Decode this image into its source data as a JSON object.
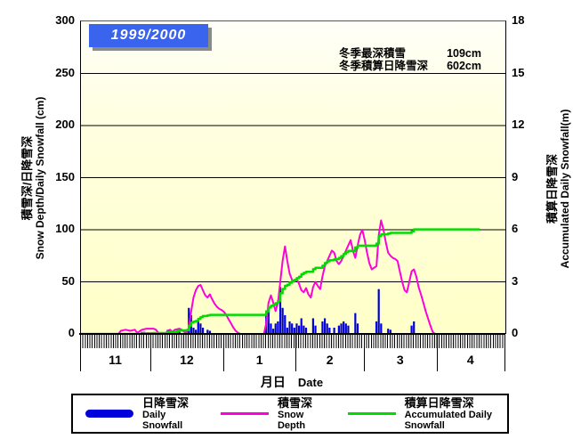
{
  "title": "1999/2000",
  "stats": {
    "max_depth_label": "冬季最深積雪",
    "max_depth_value": "109cm",
    "accum_label": "冬季積算日降雪深",
    "accum_value": "602cm"
  },
  "axes": {
    "left": {
      "title_jp": "積雪深/日降雪深",
      "title_en": "Snow Depth/Daily Snowfall (cm)",
      "ticks": [
        0,
        50,
        100,
        150,
        200,
        250,
        300
      ],
      "max": 300
    },
    "right": {
      "title_jp": "積算日降雪深",
      "title_en": "Accumulated Daily Snowfall(m)",
      "ticks": [
        0,
        3,
        6,
        9,
        12,
        15,
        18
      ],
      "max": 18
    },
    "x": {
      "title_jp": "月日",
      "title_en": "Date",
      "month_labels": [
        "11",
        "12",
        "1",
        "2",
        "3",
        "4"
      ]
    }
  },
  "legend": {
    "items": [
      {
        "jp": "日降雪深",
        "en": "Daily Snowfall",
        "color": "#0000dd",
        "swatch": "bar"
      },
      {
        "jp": "積雪深",
        "en": "Snow Depth",
        "color": "#ff00dc",
        "swatch": "line"
      },
      {
        "jp": "積算日降雪深",
        "en": "Accumulated Daily Snowfall",
        "color": "#00dc00",
        "swatch": "line"
      }
    ]
  },
  "colors": {
    "bars": "#0000dd",
    "snow_depth": "#ff00dc",
    "accumulated": "#00dc00",
    "title_box": "#3a64ee",
    "plot_bg_top": "#fffff8",
    "plot_bg_bottom": "#ffffc8"
  },
  "chart_data": {
    "type": "combo",
    "season": "1999/2000",
    "x_unit": "days from Nov 1",
    "x_total_days": 181,
    "data_end_day": 170,
    "month_boundaries_days": [
      0,
      30,
      61,
      92,
      121,
      152,
      181
    ],
    "left_axis": {
      "min": 0,
      "max": 300,
      "step": 50,
      "unit": "cm"
    },
    "right_axis": {
      "min": 0,
      "max": 18,
      "step": 3,
      "unit": "m"
    },
    "gridlines_cm": [
      50,
      100,
      150,
      200,
      250
    ],
    "annotations": {
      "winter_max_snow_depth_cm": 109,
      "winter_accumulated_daily_snowfall_cm": 602
    },
    "series": [
      {
        "name_jp": "日降雪深",
        "name_en": "Daily Snowfall",
        "type": "bar",
        "unit": "cm",
        "axis": "left",
        "color": "#0000dd",
        "points": [
          [
            26,
            2
          ],
          [
            27,
            2
          ],
          [
            31,
            1
          ],
          [
            37,
            4
          ],
          [
            38,
            3
          ],
          [
            41,
            5
          ],
          [
            42,
            3
          ],
          [
            45,
            2
          ],
          [
            46,
            25
          ],
          [
            47,
            18
          ],
          [
            48,
            6
          ],
          [
            49,
            4
          ],
          [
            50,
            12
          ],
          [
            51,
            10
          ],
          [
            52,
            6
          ],
          [
            54,
            4
          ],
          [
            55,
            3
          ],
          [
            79,
            20
          ],
          [
            80,
            22
          ],
          [
            81,
            10
          ],
          [
            82,
            5
          ],
          [
            83,
            10
          ],
          [
            84,
            12
          ],
          [
            85,
            45
          ],
          [
            86,
            25
          ],
          [
            87,
            18
          ],
          [
            88,
            6
          ],
          [
            89,
            12
          ],
          [
            90,
            10
          ],
          [
            91,
            6
          ],
          [
            92,
            10
          ],
          [
            93,
            8
          ],
          [
            94,
            15
          ],
          [
            95,
            8
          ],
          [
            96,
            6
          ],
          [
            99,
            15
          ],
          [
            100,
            8
          ],
          [
            103,
            12
          ],
          [
            104,
            15
          ],
          [
            105,
            10
          ],
          [
            106,
            6
          ],
          [
            108,
            6
          ],
          [
            110,
            8
          ],
          [
            111,
            10
          ],
          [
            112,
            12
          ],
          [
            113,
            10
          ],
          [
            114,
            8
          ],
          [
            117,
            20
          ],
          [
            118,
            10
          ],
          [
            126,
            12
          ],
          [
            127,
            43
          ],
          [
            128,
            10
          ],
          [
            131,
            5
          ],
          [
            132,
            4
          ],
          [
            141,
            8
          ],
          [
            142,
            12
          ]
        ]
      },
      {
        "name_jp": "積雪深",
        "name_en": "Snow Depth",
        "type": "line",
        "unit": "cm",
        "axis": "left",
        "color": "#ff00dc",
        "points": [
          [
            0,
            0
          ],
          [
            16,
            0
          ],
          [
            17,
            3
          ],
          [
            19,
            4
          ],
          [
            21,
            3
          ],
          [
            23,
            4
          ],
          [
            24,
            1
          ],
          [
            26,
            4
          ],
          [
            28,
            5
          ],
          [
            31,
            5
          ],
          [
            32,
            4
          ],
          [
            33,
            1
          ],
          [
            34,
            0
          ],
          [
            36,
            0
          ],
          [
            37,
            3
          ],
          [
            38,
            4
          ],
          [
            39,
            2
          ],
          [
            40,
            4
          ],
          [
            42,
            5
          ],
          [
            43,
            4
          ],
          [
            44,
            2
          ],
          [
            45,
            1
          ],
          [
            46,
            6
          ],
          [
            47,
            22
          ],
          [
            48,
            35
          ],
          [
            49,
            42
          ],
          [
            50,
            46
          ],
          [
            51,
            47
          ],
          [
            52,
            42
          ],
          [
            53,
            37
          ],
          [
            54,
            35
          ],
          [
            55,
            38
          ],
          [
            56,
            33
          ],
          [
            57,
            29
          ],
          [
            58,
            26
          ],
          [
            59,
            24
          ],
          [
            60,
            23
          ],
          [
            61,
            21
          ],
          [
            62,
            18
          ],
          [
            63,
            14
          ],
          [
            64,
            10
          ],
          [
            65,
            6
          ],
          [
            66,
            3
          ],
          [
            67,
            1
          ],
          [
            68,
            0
          ],
          [
            78,
            0
          ],
          [
            79,
            10
          ],
          [
            80,
            30
          ],
          [
            81,
            37
          ],
          [
            82,
            30
          ],
          [
            83,
            22
          ],
          [
            84,
            30
          ],
          [
            85,
            50
          ],
          [
            86,
            70
          ],
          [
            87,
            84
          ],
          [
            88,
            70
          ],
          [
            89,
            58
          ],
          [
            90,
            52
          ],
          [
            91,
            50
          ],
          [
            92,
            53
          ],
          [
            93,
            48
          ],
          [
            94,
            42
          ],
          [
            95,
            40
          ],
          [
            96,
            44
          ],
          [
            97,
            38
          ],
          [
            98,
            35
          ],
          [
            99,
            45
          ],
          [
            100,
            50
          ],
          [
            101,
            46
          ],
          [
            102,
            43
          ],
          [
            103,
            55
          ],
          [
            104,
            65
          ],
          [
            105,
            70
          ],
          [
            106,
            75
          ],
          [
            107,
            80
          ],
          [
            108,
            78
          ],
          [
            109,
            70
          ],
          [
            110,
            67
          ],
          [
            111,
            70
          ],
          [
            112,
            75
          ],
          [
            113,
            80
          ],
          [
            114,
            85
          ],
          [
            115,
            90
          ],
          [
            116,
            80
          ],
          [
            117,
            73
          ],
          [
            118,
            85
          ],
          [
            119,
            95
          ],
          [
            120,
            100
          ],
          [
            121,
            90
          ],
          [
            122,
            78
          ],
          [
            123,
            68
          ],
          [
            124,
            62
          ],
          [
            126,
            65
          ],
          [
            127,
            95
          ],
          [
            128,
            109
          ],
          [
            129,
            100
          ],
          [
            130,
            88
          ],
          [
            131,
            78
          ],
          [
            132,
            75
          ],
          [
            133,
            73
          ],
          [
            134,
            72
          ],
          [
            135,
            70
          ],
          [
            136,
            60
          ],
          [
            137,
            50
          ],
          [
            138,
            42
          ],
          [
            139,
            40
          ],
          [
            140,
            50
          ],
          [
            141,
            60
          ],
          [
            142,
            62
          ],
          [
            143,
            55
          ],
          [
            144,
            45
          ],
          [
            145,
            38
          ],
          [
            146,
            30
          ],
          [
            147,
            22
          ],
          [
            148,
            15
          ],
          [
            149,
            8
          ],
          [
            150,
            2
          ],
          [
            151,
            0
          ],
          [
            170,
            0
          ]
        ]
      },
      {
        "name_jp": "積算日降雪深",
        "name_en": "Accumulated Daily Snowfall",
        "type": "step-line",
        "unit": "m",
        "axis": "right",
        "color": "#00dc00",
        "cumulative_of": "日降雪深 (Daily Snowfall)",
        "final_value_m": 6.02
      }
    ]
  }
}
